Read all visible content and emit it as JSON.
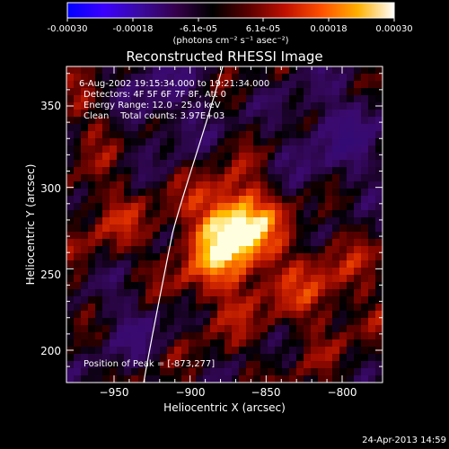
{
  "title": "Reconstructed RHESSI Image",
  "colorbar": {
    "tick_labels": [
      "-0.00030",
      "-0.00018",
      "-6.1e-05",
      "6.1e-05",
      "0.00018",
      "0.00030"
    ],
    "unit_text": "(photons cm⁻² s⁻¹ asec⁻²)",
    "colormap": [
      "#0000ff",
      "#3a00ff",
      "#3a0aa0",
      "#35004a",
      "#000000",
      "#5a0000",
      "#c01000",
      "#ff5000",
      "#ffb000",
      "#ffffff"
    ]
  },
  "info": {
    "time_range": "6-Aug-2002 19:15:34.000 to 19:21:34.000",
    "detectors": "Detectors: 4F 5F 6F 7F 8F, Att 0",
    "energy": "Energy Range: 12.0 - 25.0 keV",
    "clean_total": "Clean    Total counts: 3.97E+03",
    "peak": "Position of Peak = [-873,277]"
  },
  "axes": {
    "xlabel": "Heliocentric X (arcsec)",
    "ylabel": "Heliocentric Y (arcsec)",
    "x_ticks": [
      "−950",
      "−900",
      "−850",
      "−800"
    ],
    "y_ticks": [
      "200",
      "250",
      "300",
      "350"
    ]
  },
  "footer": {
    "date": "24-Apr-2013 14:59"
  }
}
